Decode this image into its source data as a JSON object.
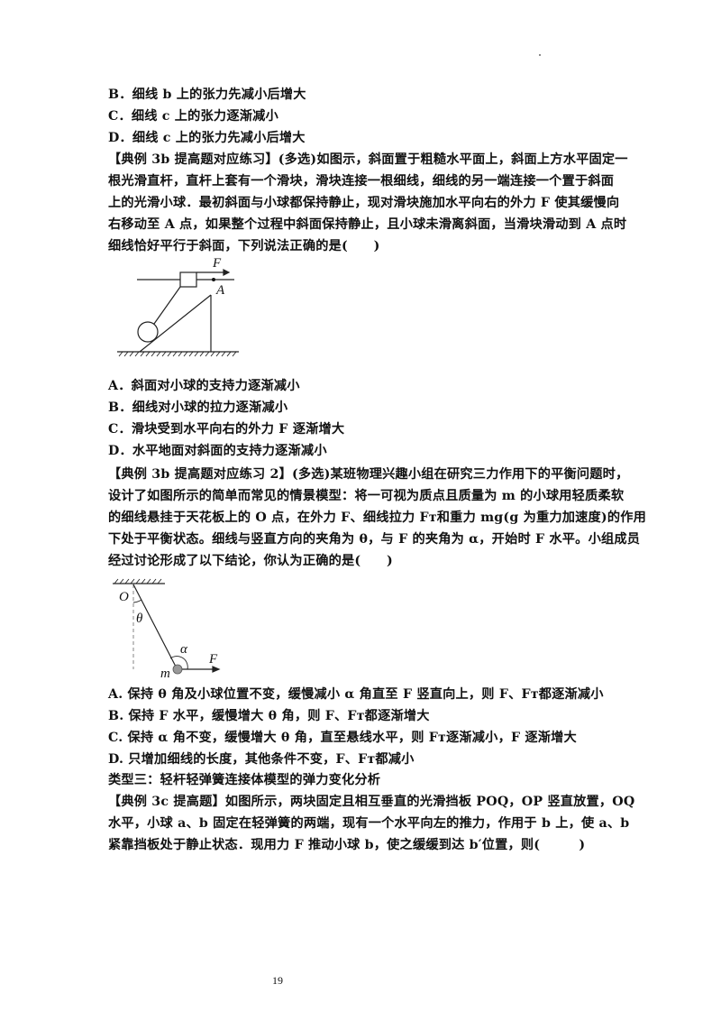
{
  "lines_top": [
    "B．细线 b 上的张力先减小后增大",
    "C．细线 c 上的张力逐渐减小",
    "D．细线 c 上的张力先减小后增大",
    "【典例 3b 提高题对应练习】(多选)如图示，斜面置于粗糙水平面上，斜面上方水平固定一",
    "根光滑直杆，直杆上套有一个滑块，滑块连接一根细线，细线的另一端连接一个置于斜面",
    "上的光滑小球．最初斜面与小球都保持静止，现对滑块施加水平向右的外力 F 使其缓慢向",
    "右移动至 A 点，如果整个过程中斜面保持静止，且小球未滑离斜面，当滑块滑动到 A 点时",
    "细线恰好平行于斜面，下列说法正确的是(　　)"
  ],
  "figure1": {
    "force_label": "F",
    "point_label": "A"
  },
  "lines_mid": [
    "A．斜面对小球的支持力逐渐减小",
    "B．细线对小球的拉力逐渐减小",
    "C．滑块受到水平向右的外力 F 逐渐增大",
    "D．水平地面对斜面的支持力逐渐减小",
    "【典例 3b 提高题对应练习 2】(多选)某班物理兴趣小组在研究三力作用下的平衡问题时，",
    "设计了如图所示的简单而常见的情景模型：将一可视为质点且质量为 m 的小球用轻质柔软",
    "的细线悬挂于天花板上的 O 点，在外力 F、细线拉力 Fᴛ和重力 mg(g 为重力加速度)的作用",
    "下处于平衡状态。细线与竖直方向的夹角为 θ，与 F 的夹角为 α，开始时 F 水平。小组成员",
    "经过讨论形成了以下结论，你认为正确的是(　　)"
  ],
  "figure2": {
    "origin_label": "O",
    "theta_label": "θ",
    "alpha_label": "α",
    "mass_label": "m",
    "force_label": "F"
  },
  "lines_bottom": [
    "A. 保持 θ 角及小球位置不变，缓慢减小 α 角直至 F 竖直向上，则 F、Fᴛ都逐渐减小",
    "B. 保持 F 水平，缓慢增大 θ 角，则 F、Fᴛ都逐渐增大",
    "C. 保持 α 角不变，缓慢增大 θ 角，直至悬线水平，则 Fᴛ逐渐减小，F 逐渐增大",
    "D. 只增加细线的长度，其他条件不变，F、Fᴛ都减小",
    "类型三：轻杆轻弹簧连接体模型的弹力变化分析",
    "【典例 3c 提高题】如图所示，两块固定且相互垂直的光滑挡板 POQ，OP 竖直放置，OQ",
    "水平，小球 a、b 固定在轻弹簧的两端，现有一个水平向左的推力，作用于 b 上，使 a、b",
    "紧靠挡板处于静止状态．现用力 F 推动小球 b，使之缓缓到达 b′位置，则(　　　)"
  ],
  "page_number": "19"
}
